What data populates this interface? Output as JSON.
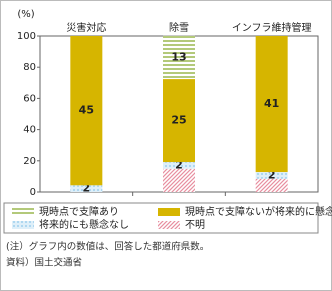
{
  "chart_data": {
    "type": "stacked_bar",
    "y_unit": "(%)",
    "categories": [
      "災害対応",
      "除雪",
      "インフラ維持管理"
    ],
    "ylim": [
      0,
      100
    ],
    "yticks": [
      0,
      20,
      40,
      60,
      80,
      100
    ],
    "series": [
      {
        "name": "現時点で支障あり",
        "color": "#b3c97a",
        "pattern": "stripes",
        "values": [
          0,
          27.7,
          0
        ],
        "value_labels": [
          null,
          "13",
          null
        ]
      },
      {
        "name": "現時点で支障ないが将来的に懸念",
        "color": "#d6b500",
        "pattern": "solid",
        "values": [
          95.7,
          53.2,
          87.2
        ],
        "value_labels": [
          "45",
          "25",
          "41"
        ]
      },
      {
        "name": "将来的にも懸念なし",
        "color": "#9fd0ee",
        "pattern": "dots",
        "values": [
          4.3,
          4.3,
          4.3
        ],
        "value_labels": [
          "2",
          "2",
          "2"
        ]
      },
      {
        "name": "不明",
        "color": "#e88fa0",
        "pattern": "hatch",
        "values": [
          0,
          14.9,
          8.5
        ],
        "value_labels": [
          null,
          null,
          null
        ]
      }
    ]
  },
  "notes": [
    "(注）グラフ内の数値は、回答した都道府県数。",
    "資料）国土交通省"
  ]
}
